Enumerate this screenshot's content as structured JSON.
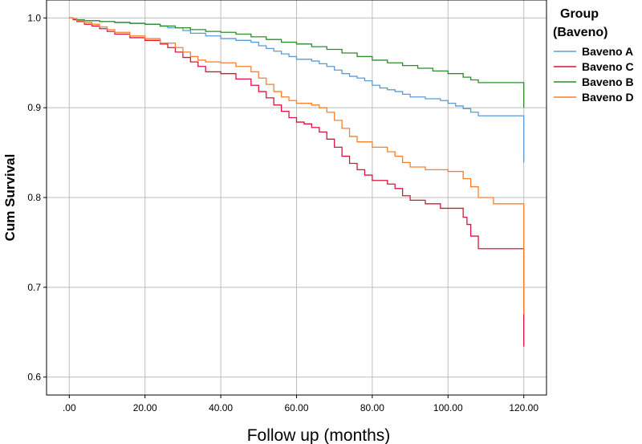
{
  "chart_data": {
    "type": "line",
    "xlabel": "Follow up (months)",
    "ylabel": "Cum Survival",
    "xlim": [
      -6,
      126
    ],
    "ylim": [
      0.58,
      1.02
    ],
    "xticks": [
      0,
      20,
      40,
      60,
      80,
      100,
      120
    ],
    "xtick_labels": [
      ".00",
      "20.00",
      "40.00",
      "60.00",
      "80.00",
      "100.00",
      "120.00"
    ],
    "yticks": [
      0.6,
      0.7,
      0.8,
      0.9,
      1.0
    ],
    "ytick_labels": [
      "0.6",
      "0.7",
      "0.8",
      "0.9",
      "1.0"
    ],
    "grid": true,
    "legend": {
      "title_lines": [
        "Group",
        "(Baveno)"
      ],
      "position": "right"
    },
    "series": [
      {
        "name": "Baveno A",
        "color": "#5b9bd5",
        "x": [
          0,
          1,
          2,
          4,
          8,
          12,
          16,
          20,
          24,
          26,
          30,
          32,
          36,
          40,
          44,
          48,
          50,
          52,
          54,
          56,
          58,
          60,
          64,
          66,
          68,
          70,
          72,
          74,
          76,
          78,
          80,
          82,
          84,
          86,
          88,
          90,
          94,
          98,
          100,
          102,
          104,
          106,
          108,
          112,
          116,
          120,
          120
        ],
        "y": [
          1.0,
          0.999,
          0.998,
          0.997,
          0.996,
          0.995,
          0.994,
          0.993,
          0.991,
          0.989,
          0.986,
          0.983,
          0.98,
          0.977,
          0.975,
          0.973,
          0.969,
          0.966,
          0.963,
          0.96,
          0.957,
          0.954,
          0.952,
          0.949,
          0.946,
          0.942,
          0.938,
          0.935,
          0.933,
          0.93,
          0.925,
          0.922,
          0.92,
          0.918,
          0.915,
          0.912,
          0.91,
          0.908,
          0.905,
          0.902,
          0.899,
          0.895,
          0.891,
          0.891,
          0.891,
          0.891,
          0.839
        ]
      },
      {
        "name": "Baveno C",
        "color": "#dc143c",
        "x": [
          0,
          1,
          2,
          4,
          6,
          8,
          10,
          12,
          16,
          20,
          24,
          26,
          28,
          30,
          32,
          34,
          36,
          40,
          44,
          48,
          50,
          52,
          54,
          56,
          58,
          60,
          62,
          64,
          66,
          68,
          70,
          72,
          74,
          76,
          78,
          80,
          84,
          86,
          88,
          90,
          94,
          98,
          100,
          104,
          105,
          106,
          108,
          112,
          116,
          120,
          120
        ],
        "y": [
          1.0,
          0.998,
          0.996,
          0.993,
          0.991,
          0.988,
          0.985,
          0.982,
          0.978,
          0.975,
          0.971,
          0.967,
          0.962,
          0.956,
          0.951,
          0.946,
          0.94,
          0.938,
          0.932,
          0.925,
          0.918,
          0.911,
          0.903,
          0.896,
          0.889,
          0.884,
          0.882,
          0.878,
          0.873,
          0.865,
          0.856,
          0.846,
          0.838,
          0.831,
          0.825,
          0.819,
          0.815,
          0.81,
          0.802,
          0.797,
          0.793,
          0.788,
          0.788,
          0.778,
          0.77,
          0.757,
          0.743,
          0.743,
          0.743,
          0.743,
          0.634
        ]
      },
      {
        "name": "Baveno B",
        "color": "#2e8b2e",
        "x": [
          0,
          1,
          2,
          4,
          8,
          12,
          16,
          20,
          24,
          28,
          32,
          36,
          40,
          44,
          48,
          52,
          56,
          60,
          64,
          68,
          72,
          76,
          80,
          84,
          88,
          92,
          96,
          100,
          104,
          106,
          108,
          112,
          116,
          120,
          120
        ],
        "y": [
          1.0,
          0.999,
          0.998,
          0.997,
          0.996,
          0.995,
          0.994,
          0.993,
          0.991,
          0.989,
          0.987,
          0.985,
          0.984,
          0.982,
          0.979,
          0.976,
          0.973,
          0.971,
          0.968,
          0.965,
          0.961,
          0.957,
          0.953,
          0.95,
          0.947,
          0.944,
          0.941,
          0.938,
          0.934,
          0.931,
          0.928,
          0.928,
          0.928,
          0.928,
          0.9
        ]
      },
      {
        "name": "Baveno D",
        "color": "#ff7f27",
        "x": [
          0,
          1,
          2,
          4,
          6,
          8,
          10,
          12,
          16,
          20,
          24,
          28,
          30,
          32,
          34,
          36,
          40,
          44,
          48,
          50,
          52,
          54,
          56,
          58,
          60,
          62,
          64,
          66,
          68,
          70,
          72,
          74,
          76,
          80,
          84,
          86,
          88,
          90,
          94,
          98,
          100,
          104,
          106,
          108,
          112,
          116,
          120,
          120
        ],
        "y": [
          1.0,
          0.999,
          0.997,
          0.995,
          0.993,
          0.99,
          0.987,
          0.984,
          0.98,
          0.977,
          0.972,
          0.967,
          0.962,
          0.957,
          0.953,
          0.951,
          0.95,
          0.946,
          0.94,
          0.933,
          0.926,
          0.918,
          0.912,
          0.908,
          0.905,
          0.905,
          0.903,
          0.9,
          0.895,
          0.886,
          0.877,
          0.868,
          0.862,
          0.856,
          0.851,
          0.846,
          0.839,
          0.834,
          0.831,
          0.831,
          0.829,
          0.821,
          0.812,
          0.8,
          0.793,
          0.793,
          0.793,
          0.67
        ]
      }
    ]
  }
}
